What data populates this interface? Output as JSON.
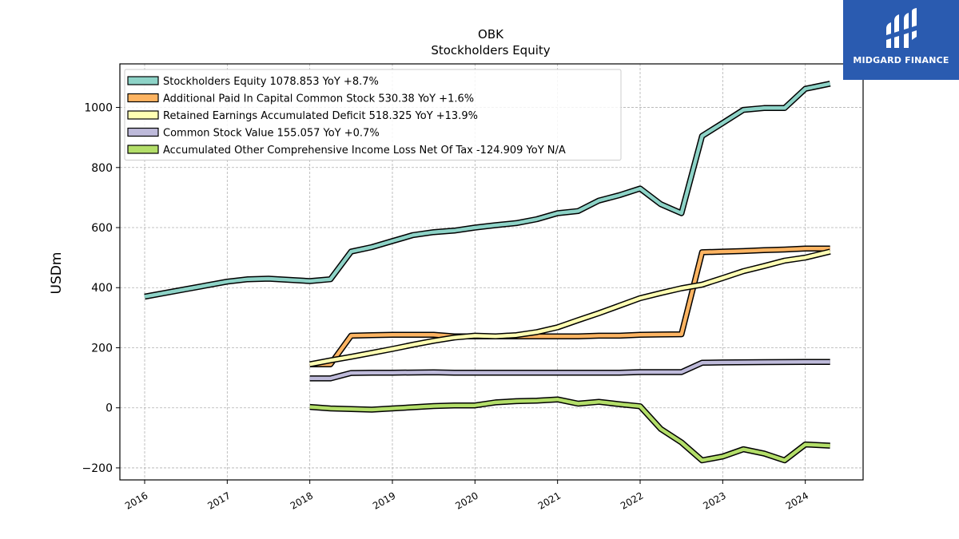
{
  "brand": {
    "name": "MIDGARD FINANCE",
    "color": "#2a5bb0"
  },
  "chart_data": {
    "type": "line",
    "title": "OBK",
    "subtitle": "Stockholders  Equity",
    "xlabel": "",
    "ylabel": "USDm",
    "xlim": [
      2015.7,
      2024.7
    ],
    "ylim": [
      -240,
      1145
    ],
    "y_ticks": [
      -200,
      0,
      200,
      400,
      600,
      800,
      1000
    ],
    "x_ticks": [
      2016,
      2017,
      2018,
      2019,
      2020,
      2021,
      2022,
      2023,
      2024
    ],
    "grid": true,
    "legend_position": "top-left",
    "series": [
      {
        "name": "Stockholders Equity  1078.853 YoY +8.7%",
        "color": "#8dd3c7",
        "x": [
          2016.0,
          2016.5,
          2017.0,
          2017.25,
          2017.5,
          2018.0,
          2018.25,
          2018.5,
          2018.75,
          2019.0,
          2019.25,
          2019.5,
          2019.75,
          2020.0,
          2020.25,
          2020.5,
          2020.75,
          2021.0,
          2021.25,
          2021.5,
          2021.75,
          2022.0,
          2022.25,
          2022.5,
          2022.75,
          2023.0,
          2023.25,
          2023.5,
          2023.75,
          2024.0,
          2024.3
        ],
        "y": [
          370,
          395,
          420,
          428,
          430,
          422,
          428,
          520,
          535,
          555,
          575,
          585,
          590,
          600,
          608,
          615,
          628,
          648,
          655,
          690,
          708,
          730,
          678,
          648,
          905,
          948,
          992,
          998,
          998,
          1062,
          1079
        ]
      },
      {
        "name": "Additional Paid In Capital Common Stock  530.38 YoY +1.6%",
        "color": "#fdb462",
        "x": [
          2018.0,
          2018.25,
          2018.5,
          2018.75,
          2019.0,
          2019.25,
          2019.5,
          2019.75,
          2020.0,
          2020.25,
          2020.5,
          2020.75,
          2021.0,
          2021.25,
          2021.5,
          2021.75,
          2022.0,
          2022.25,
          2022.5,
          2022.75,
          2023.0,
          2023.25,
          2023.5,
          2023.75,
          2024.0,
          2024.3
        ],
        "y": [
          145,
          145,
          240,
          242,
          243,
          243,
          243,
          238,
          238,
          238,
          238,
          238,
          238,
          238,
          240,
          240,
          243,
          244,
          245,
          518,
          520,
          522,
          525,
          527,
          530,
          530
        ]
      },
      {
        "name": "Retained Earnings Accumulated Deficit  518.325 YoY +13.9%",
        "color": "#ffffb3",
        "x": [
          2018.0,
          2018.25,
          2018.5,
          2018.75,
          2019.0,
          2019.25,
          2019.5,
          2019.75,
          2020.0,
          2020.25,
          2020.5,
          2020.75,
          2021.0,
          2021.25,
          2021.5,
          2021.75,
          2022.0,
          2022.25,
          2022.5,
          2022.75,
          2023.0,
          2023.25,
          2023.5,
          2023.75,
          2024.0,
          2024.3
        ],
        "y": [
          145,
          158,
          170,
          183,
          196,
          210,
          223,
          234,
          240,
          238,
          242,
          252,
          268,
          292,
          315,
          340,
          365,
          382,
          398,
          410,
          432,
          455,
          472,
          490,
          500,
          520
        ]
      },
      {
        "name": "Common Stock Value  155.057 YoY +0.7%",
        "color": "#bebada",
        "x": [
          2018.0,
          2018.25,
          2018.5,
          2018.75,
          2019.0,
          2019.5,
          2019.75,
          2020.0,
          2020.5,
          2021.0,
          2021.5,
          2021.75,
          2022.0,
          2022.25,
          2022.5,
          2022.75,
          2023.0,
          2023.5,
          2024.0,
          2024.3
        ],
        "y": [
          98,
          98,
          116,
          117,
          117,
          118,
          117,
          117,
          117,
          117,
          117,
          117,
          119,
          119,
          119,
          150,
          151,
          152,
          153,
          153
        ]
      },
      {
        "name": "Accumulated Other Comprehensive Income Loss Net Of Tax  -124.909 YoY N/A",
        "color": "#b3de69",
        "x": [
          2018.0,
          2018.25,
          2018.5,
          2018.75,
          2019.0,
          2019.25,
          2019.5,
          2019.75,
          2020.0,
          2020.25,
          2020.5,
          2020.75,
          2021.0,
          2021.25,
          2021.5,
          2021.75,
          2022.0,
          2022.25,
          2022.5,
          2022.75,
          2023.0,
          2023.25,
          2023.5,
          2023.75,
          2024.0,
          2024.3
        ],
        "y": [
          3,
          -2,
          -4,
          -6,
          -2,
          2,
          6,
          8,
          8,
          18,
          22,
          24,
          28,
          14,
          20,
          12,
          5,
          -70,
          -115,
          -175,
          -162,
          -138,
          -152,
          -175,
          -122,
          -126
        ]
      }
    ]
  }
}
